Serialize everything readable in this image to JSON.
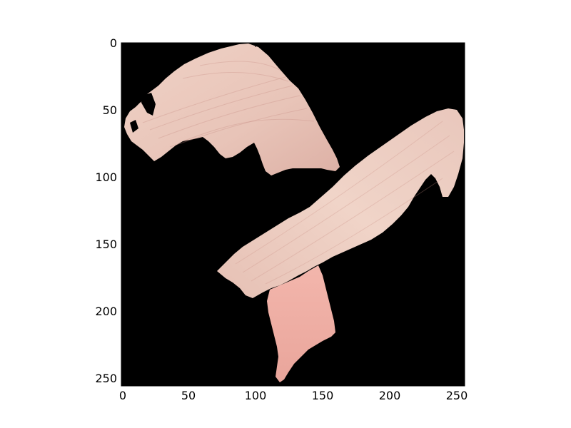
{
  "figure": {
    "background": "#ffffff",
    "image_background": "#000000",
    "subject_color": "#e8c4b8",
    "subject_highlight": "#f2d8cc",
    "subject_shadow": "#c98f86",
    "lower_strip_color": "#eeaaa1",
    "axes": {
      "x": {
        "ticks": [
          "0",
          "50",
          "100",
          "150",
          "200",
          "250"
        ]
      },
      "y": {
        "ticks": [
          "0",
          "50",
          "100",
          "150",
          "200",
          "250"
        ]
      }
    }
  }
}
